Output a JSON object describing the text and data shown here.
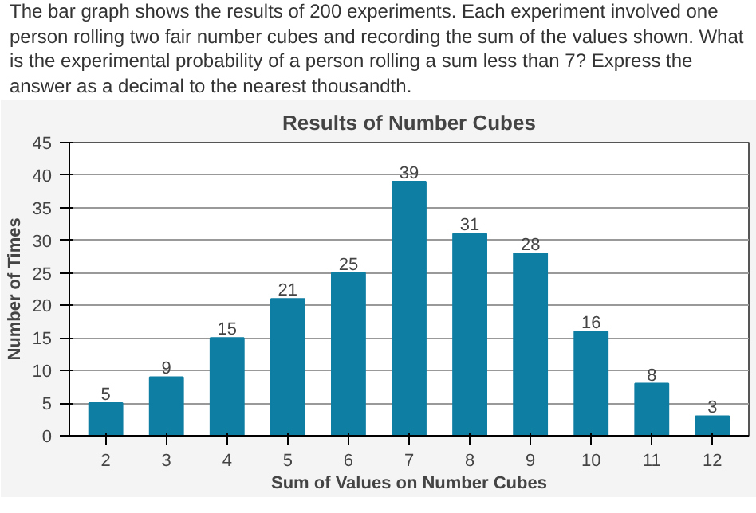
{
  "chart_data": {
    "type": "bar",
    "title": "Results of Number Cubes",
    "xlabel": "Sum of Values on Number Cubes",
    "ylabel": "Number of Times",
    "annotations": [
      "The bar graph shows the results of 200 experiments. Each experiment involved one person rolling two fair number cubes and recording the sum of the values shown. What is the experimental probability of a person rolling a sum less than 7? Express the answer as a decimal to the nearest thousandth."
    ],
    "categories": [
      "2",
      "3",
      "4",
      "5",
      "6",
      "7",
      "8",
      "9",
      "10",
      "11",
      "12"
    ],
    "values": [
      5,
      9,
      15,
      21,
      25,
      39,
      31,
      28,
      16,
      8,
      3
    ],
    "color": "#0f7ea3",
    "ylim": [
      0,
      45
    ],
    "yticks": [
      0,
      5,
      10,
      15,
      20,
      25,
      30,
      35,
      40,
      45
    ],
    "grid": "y",
    "data_labels": true
  }
}
